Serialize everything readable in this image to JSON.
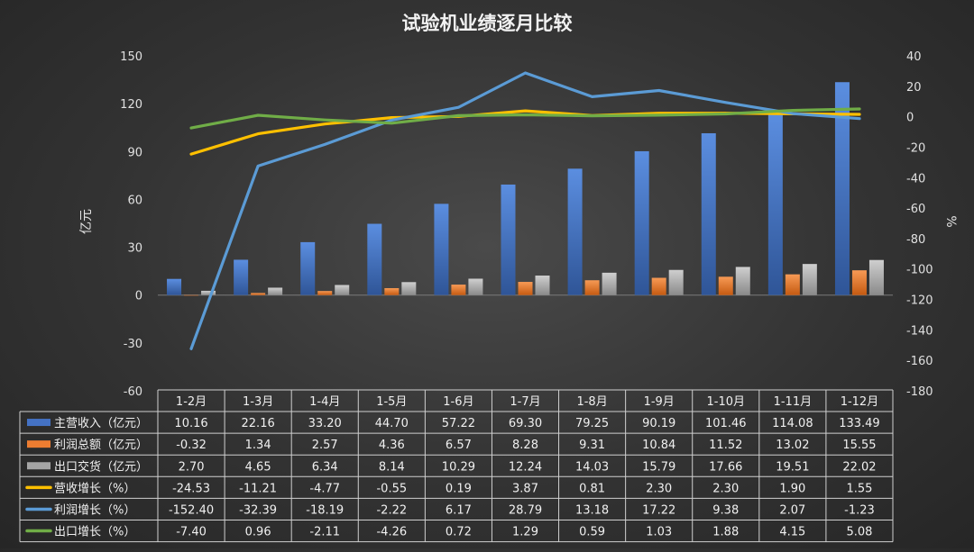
{
  "chart_data": {
    "type": "bar",
    "title": "试验机业绩逐月比较",
    "ylabel": "亿元",
    "y2label": "%",
    "ylim": [
      -60,
      150
    ],
    "y2lim": [
      -180,
      40
    ],
    "yticks": [
      150,
      120,
      90,
      60,
      30,
      0,
      -30,
      -60
    ],
    "y2ticks": [
      40,
      20,
      0,
      -20,
      -40,
      -60,
      -80,
      -100,
      -120,
      -140,
      -160,
      -180
    ],
    "grid": false,
    "legend_position": "table-left",
    "categories": [
      "1-2月",
      "1-3月",
      "1-4月",
      "1-5月",
      "1-6月",
      "1-7月",
      "1-8月",
      "1-9月",
      "1-10月",
      "1-11月",
      "1-12月"
    ],
    "series": [
      {
        "name": "主营收入（亿元）",
        "kind": "bar",
        "axis": "left",
        "color": "#4472c4",
        "values": [
          10.16,
          22.16,
          33.2,
          44.7,
          57.22,
          69.3,
          79.25,
          90.19,
          101.46,
          114.08,
          133.49
        ],
        "labels": [
          "10.16",
          "22.16",
          "33.20",
          "44.70",
          "57.22",
          "69.30",
          "79.25",
          "90.19",
          "101.46",
          "114.08",
          "133.49"
        ]
      },
      {
        "name": "利润总额（亿元）",
        "kind": "bar",
        "axis": "left",
        "color": "#ed7d31",
        "values": [
          -0.32,
          1.34,
          2.57,
          4.36,
          6.57,
          8.28,
          9.31,
          10.84,
          11.52,
          13.02,
          15.55
        ],
        "labels": [
          "-0.32",
          "1.34",
          "2.57",
          "4.36",
          "6.57",
          "8.28",
          "9.31",
          "10.84",
          "11.52",
          "13.02",
          "15.55"
        ]
      },
      {
        "name": "出口交货（亿元）",
        "kind": "bar",
        "axis": "left",
        "color": "#a5a5a5",
        "values": [
          2.7,
          4.65,
          6.34,
          8.14,
          10.29,
          12.24,
          14.03,
          15.79,
          17.66,
          19.51,
          22.02
        ],
        "labels": [
          "2.70",
          "4.65",
          "6.34",
          "8.14",
          "10.29",
          "12.24",
          "14.03",
          "15.79",
          "17.66",
          "19.51",
          "22.02"
        ]
      },
      {
        "name": "营收增长（%）",
        "kind": "line",
        "axis": "right",
        "color": "#ffc000",
        "values": [
          -24.53,
          -11.21,
          -4.77,
          -0.55,
          0.19,
          3.87,
          0.81,
          2.3,
          2.3,
          1.9,
          1.55
        ],
        "labels": [
          "-24.53",
          "-11.21",
          "-4.77",
          "-0.55",
          "0.19",
          "3.87",
          "0.81",
          "2.30",
          "2.30",
          "1.90",
          "1.55"
        ]
      },
      {
        "name": "利润增长（%）",
        "kind": "line",
        "axis": "right",
        "color": "#5b9bd5",
        "values": [
          -152.4,
          -32.39,
          -18.19,
          -2.22,
          6.17,
          28.79,
          13.18,
          17.22,
          9.38,
          2.07,
          -1.23
        ],
        "labels": [
          "-152.40",
          "-32.39",
          "-18.19",
          "-2.22",
          "6.17",
          "28.79",
          "13.18",
          "17.22",
          "9.38",
          "2.07",
          "-1.23"
        ]
      },
      {
        "name": "出口增长（%）",
        "kind": "line",
        "axis": "right",
        "color": "#70ad47",
        "values": [
          -7.4,
          0.96,
          -2.11,
          -4.26,
          0.72,
          1.29,
          0.59,
          1.03,
          1.88,
          4.15,
          5.08
        ],
        "labels": [
          "-7.40",
          "0.96",
          "-2.11",
          "-4.26",
          "0.72",
          "1.29",
          "0.59",
          "1.03",
          "1.88",
          "4.15",
          "5.08"
        ]
      }
    ]
  }
}
